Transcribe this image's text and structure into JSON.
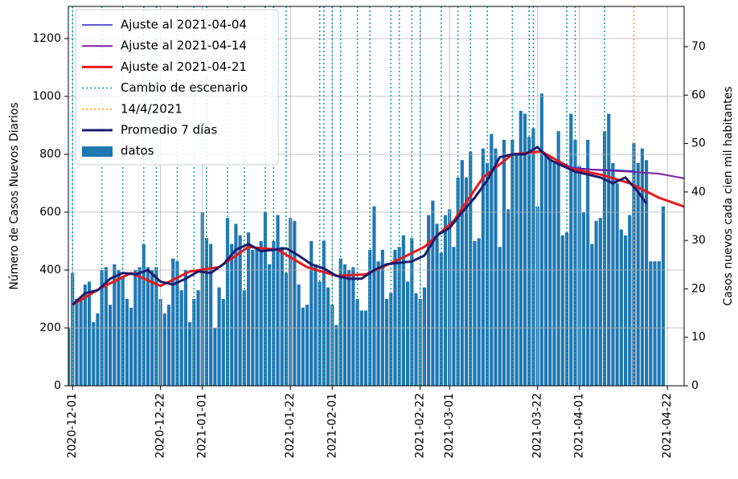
{
  "chart_data": {
    "type": "bar",
    "name": "datos",
    "ylabel": "Número de Casos Nuevos Diarios",
    "y2label": "Casos nuevos cada cien mil habitantes",
    "color": "#1f77b4",
    "grid": true,
    "legend": "upper left",
    "xlim": [
      "2020-11-30",
      "2021-04-26"
    ],
    "xticks": [
      "2020-12-01",
      "2020-12-22",
      "2021-01-01",
      "2021-01-22",
      "2021-02-01",
      "2021-02-22",
      "2021-03-01",
      "2021-03-22",
      "2021-04-01",
      "2021-04-22"
    ],
    "ylim": [
      0,
      1311
    ],
    "yticks": [
      0,
      200,
      400,
      600,
      800,
      1000,
      1200
    ],
    "y2lim": [
      0,
      78.3
    ],
    "y2ticks": [
      0,
      10,
      20,
      30,
      40,
      50,
      60,
      70
    ],
    "x_start": "2020-11-30",
    "values": [
      200,
      390,
      300,
      300,
      350,
      360,
      220,
      250,
      400,
      410,
      280,
      420,
      400,
      380,
      300,
      270,
      400,
      410,
      490,
      410,
      400,
      410,
      300,
      250,
      280,
      440,
      430,
      330,
      400,
      220,
      300,
      330,
      600,
      510,
      490,
      200,
      340,
      300,
      580,
      490,
      560,
      520,
      330,
      530,
      470,
      480,
      500,
      600,
      420,
      500,
      590,
      480,
      390,
      580,
      570,
      350,
      270,
      280,
      500,
      420,
      360,
      500,
      340,
      280,
      210,
      440,
      420,
      400,
      410,
      300,
      260,
      260,
      470,
      620,
      430,
      470,
      300,
      320,
      470,
      480,
      520,
      360,
      510,
      320,
      300,
      340,
      590,
      640,
      560,
      460,
      590,
      610,
      480,
      720,
      780,
      720,
      810,
      500,
      510,
      820,
      770,
      870,
      820,
      480,
      850,
      610,
      850,
      800,
      950,
      940,
      860,
      890,
      620,
      1010,
      800,
      790,
      770,
      880,
      520,
      530,
      940,
      850,
      760,
      600,
      850,
      490,
      570,
      580,
      880,
      940,
      770,
      700,
      540,
      520,
      590,
      840,
      770,
      820,
      780,
      430,
      430,
      430,
      620
    ],
    "series": [
      {
        "name": "Ajuste al 2021-04-04",
        "color": "#2222cc",
        "width": 1.5,
        "x": [
          "2020-12-01",
          "2020-12-08",
          "2020-12-15",
          "2020-12-22",
          "2020-12-29",
          "2021-01-05",
          "2021-01-12",
          "2021-01-19",
          "2021-01-26",
          "2021-02-02",
          "2021-02-09",
          "2021-02-16",
          "2021-02-23",
          "2021-03-02",
          "2021-03-09",
          "2021-03-16",
          "2021-03-23",
          "2021-03-30",
          "2021-04-04",
          "2021-04-10",
          "2021-04-14"
        ],
        "values": [
          280,
          340,
          390,
          345,
          395,
          410,
          480,
          470,
          410,
          380,
          385,
          430,
          480,
          570,
          720,
          800,
          810,
          755,
          748,
          745,
          742
        ]
      },
      {
        "name": "Ajuste al 2021-04-14",
        "color": "#7b1fa2",
        "width": 2,
        "x": [
          "2020-12-01",
          "2020-12-08",
          "2020-12-15",
          "2020-12-22",
          "2020-12-29",
          "2021-01-05",
          "2021-01-12",
          "2021-01-19",
          "2021-01-26",
          "2021-02-02",
          "2021-02-09",
          "2021-02-16",
          "2021-02-23",
          "2021-03-02",
          "2021-03-09",
          "2021-03-16",
          "2021-03-23",
          "2021-03-30",
          "2021-04-06",
          "2021-04-13",
          "2021-04-20",
          "2021-04-26"
        ],
        "values": [
          280,
          340,
          390,
          345,
          395,
          410,
          480,
          470,
          410,
          380,
          385,
          430,
          480,
          570,
          720,
          800,
          810,
          752,
          745,
          740,
          733,
          717
        ]
      },
      {
        "name": "Ajuste al 2021-04-21",
        "color": "#e8191c",
        "width": 3,
        "x": [
          "2020-12-01",
          "2020-12-08",
          "2020-12-15",
          "2020-12-22",
          "2020-12-29",
          "2021-01-05",
          "2021-01-12",
          "2021-01-19",
          "2021-01-26",
          "2021-02-02",
          "2021-02-09",
          "2021-02-16",
          "2021-02-23",
          "2021-03-02",
          "2021-03-09",
          "2021-03-16",
          "2021-03-23",
          "2021-03-30",
          "2021-04-06",
          "2021-04-13",
          "2021-04-20",
          "2021-04-26"
        ],
        "values": [
          280,
          340,
          390,
          345,
          395,
          410,
          480,
          470,
          410,
          380,
          385,
          430,
          480,
          570,
          720,
          800,
          810,
          750,
          730,
          700,
          650,
          619
        ]
      },
      {
        "name": "Promedio 7 días",
        "color": "#1c1c6e",
        "width": 3,
        "x": [
          "2020-12-01",
          "2020-12-04",
          "2020-12-07",
          "2020-12-10",
          "2020-12-13",
          "2020-12-16",
          "2020-12-19",
          "2020-12-22",
          "2020-12-25",
          "2020-12-28",
          "2020-12-31",
          "2021-01-03",
          "2021-01-06",
          "2021-01-09",
          "2021-01-12",
          "2021-01-15",
          "2021-01-18",
          "2021-01-21",
          "2021-01-24",
          "2021-01-27",
          "2021-01-30",
          "2021-02-02",
          "2021-02-05",
          "2021-02-08",
          "2021-02-11",
          "2021-02-14",
          "2021-02-17",
          "2021-02-20",
          "2021-02-23",
          "2021-02-26",
          "2021-03-01",
          "2021-03-04",
          "2021-03-07",
          "2021-03-10",
          "2021-03-13",
          "2021-03-16",
          "2021-03-19",
          "2021-03-22",
          "2021-03-25",
          "2021-03-28",
          "2021-03-31",
          "2021-04-03",
          "2021-04-06",
          "2021-04-09",
          "2021-04-12",
          "2021-04-15",
          "2021-04-17"
        ],
        "values": [
          280,
          320,
          330,
          370,
          390,
          385,
          400,
          360,
          350,
          370,
          395,
          390,
          420,
          470,
          490,
          465,
          470,
          475,
          450,
          420,
          405,
          380,
          370,
          370,
          400,
          420,
          425,
          430,
          450,
          520,
          545,
          600,
          650,
          710,
          790,
          800,
          800,
          825,
          780,
          760,
          740,
          730,
          720,
          700,
          720,
          670,
          630
        ]
      }
    ],
    "vlines": [
      {
        "name": "Cambio de escenario",
        "color": "#14a0a0",
        "x": [
          "2020-12-01",
          "2020-12-08",
          "2020-12-13",
          "2020-12-18",
          "2020-12-21",
          "2020-12-26",
          "2020-12-30",
          "2021-01-02",
          "2021-01-07",
          "2021-01-11",
          "2021-01-16",
          "2021-01-18",
          "2021-01-21",
          "2021-01-29",
          "2021-01-30",
          "2021-02-01",
          "2021-02-03",
          "2021-02-07",
          "2021-02-10",
          "2021-02-15",
          "2021-02-17",
          "2021-02-20",
          "2021-02-22",
          "2021-02-27",
          "2021-03-03",
          "2021-03-06",
          "2021-03-10",
          "2021-03-16",
          "2021-03-20",
          "2021-03-21",
          "2021-03-29",
          "2021-03-31",
          "2021-04-07"
        ]
      },
      {
        "name": "14/4/2021",
        "color": "#ff9f1c",
        "x": [
          "2021-04-14"
        ]
      }
    ]
  }
}
